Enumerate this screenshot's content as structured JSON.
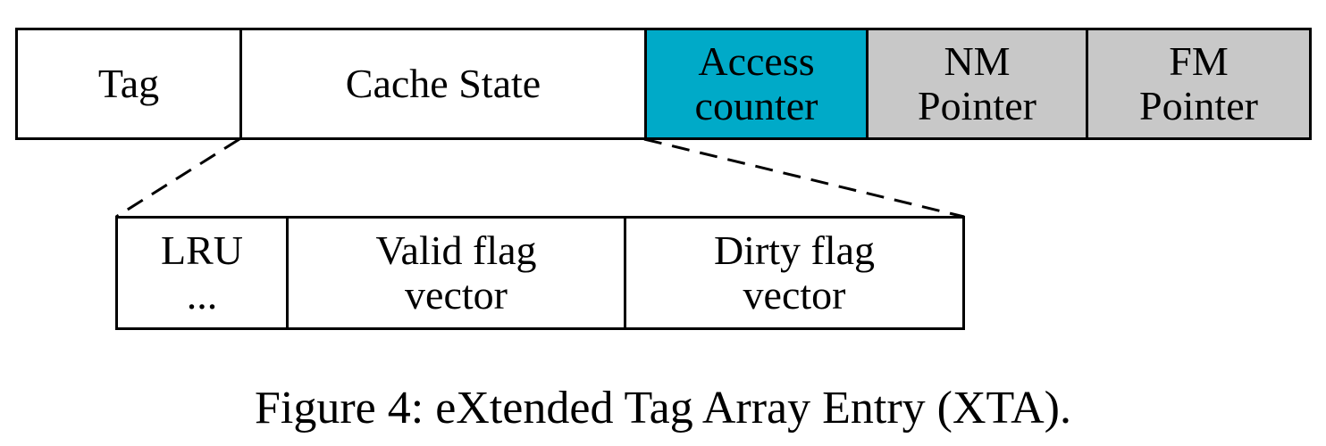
{
  "entry": {
    "fields": [
      {
        "lines": [
          "Tag"
        ],
        "fill": "#ffffff"
      },
      {
        "lines": [
          "Cache State"
        ],
        "fill": "#ffffff"
      },
      {
        "lines": [
          "Access",
          "counter"
        ],
        "fill": "#00aac8"
      },
      {
        "lines": [
          "NM",
          "Pointer"
        ],
        "fill": "#c8c8c8"
      },
      {
        "lines": [
          "FM",
          "Pointer"
        ],
        "fill": "#c8c8c8"
      }
    ]
  },
  "cache_state_detail": {
    "fields": [
      {
        "lines": [
          "LRU",
          "..."
        ],
        "fill": "#ffffff"
      },
      {
        "lines": [
          "Valid flag",
          "vector"
        ],
        "fill": "#ffffff"
      },
      {
        "lines": [
          "Dirty flag",
          "vector"
        ],
        "fill": "#ffffff"
      }
    ]
  },
  "caption": "Figure 4: eXtended Tag Array Entry (XTA)."
}
